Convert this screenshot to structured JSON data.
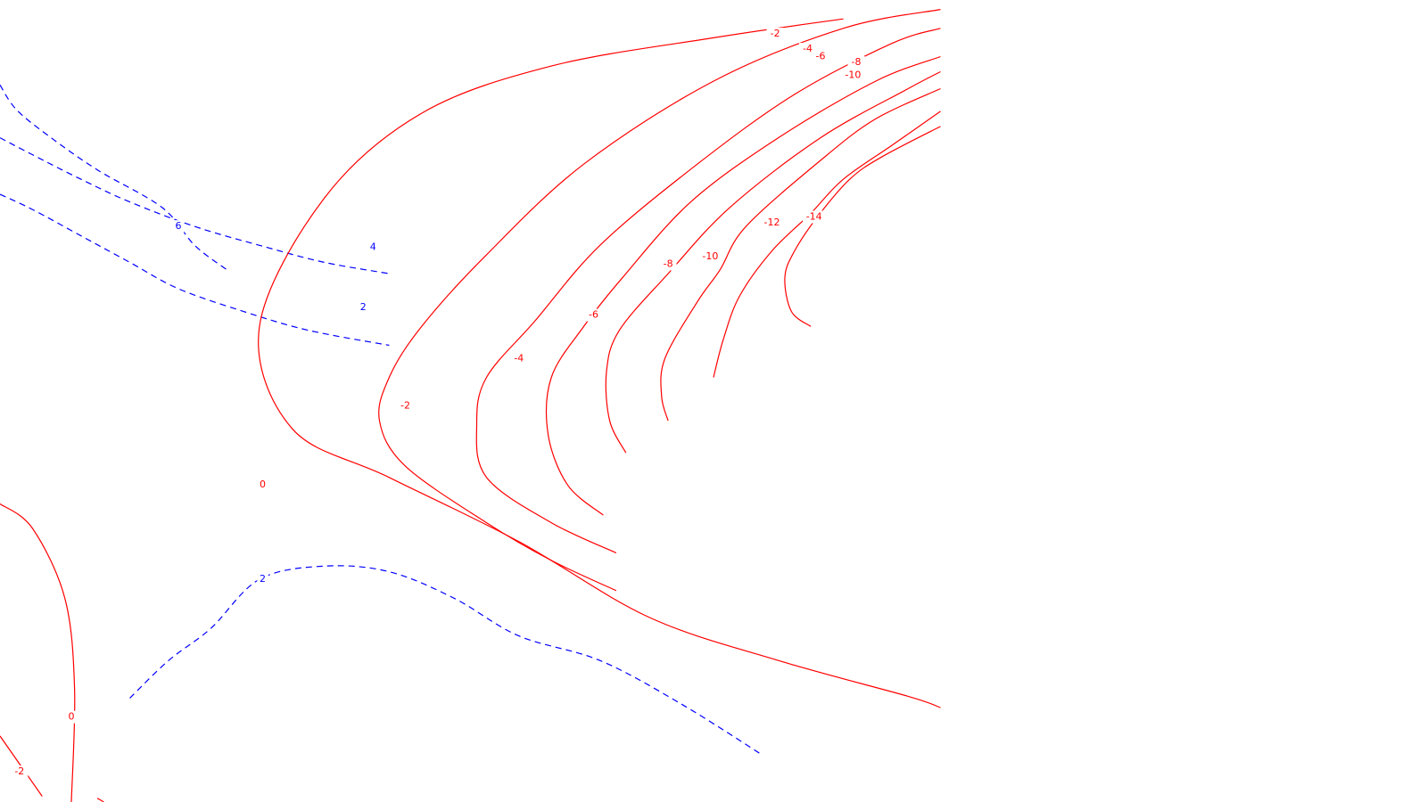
{
  "chart_data": {
    "type": "contour",
    "colors": {
      "positive": "#0000ff",
      "negative": "#ff0000"
    },
    "line_styles": {
      "positive": "dashed",
      "negative": "solid"
    },
    "contours": [
      {
        "id": "p6",
        "level": 6,
        "label": "6",
        "points": [
          [
            0,
            1
          ],
          [
            0.5,
            0.87
          ],
          [
            1.5,
            0.73
          ],
          [
            3,
            0.55
          ],
          [
            5,
            0.35
          ],
          [
            6,
            0.15
          ],
          [
            7,
            0.02
          ]
        ]
      },
      {
        "id": "p4",
        "level": 4,
        "label": "4",
        "points": [
          [
            0,
            0.72
          ],
          [
            1,
            0.63
          ],
          [
            2.5,
            0.5
          ],
          [
            4,
            0.38
          ],
          [
            6,
            0.25
          ],
          [
            8,
            0.15
          ],
          [
            10,
            0.06
          ],
          [
            12,
            0
          ]
        ]
      },
      {
        "id": "p2a",
        "level": 2,
        "label": "2",
        "points": [
          [
            0,
            0.42
          ],
          [
            1,
            0.34
          ],
          [
            2.5,
            0.2
          ],
          [
            4,
            0.06
          ],
          [
            5.5,
            -0.08
          ],
          [
            7.5,
            -0.2
          ],
          [
            9.5,
            -0.3
          ],
          [
            12,
            -0.38
          ]
        ]
      },
      {
        "id": "p2b",
        "level": 2,
        "label": "2",
        "points": [
          [
            4,
            -2.25
          ],
          [
            5.2,
            -2.05
          ],
          [
            6.5,
            -1.88
          ],
          [
            8,
            -1.62
          ],
          [
            10,
            -1.55
          ],
          [
            12,
            -1.58
          ],
          [
            14,
            -1.72
          ],
          [
            16,
            -1.92
          ],
          [
            18.5,
            -2.05
          ],
          [
            21,
            -2.28
          ],
          [
            23.5,
            -2.55
          ]
        ]
      },
      {
        "id": "n0a",
        "level": 0,
        "label": "0",
        "points": [
          [
            0,
            -1.22
          ],
          [
            1,
            -1.35
          ],
          [
            2,
            -1.72
          ],
          [
            2.3,
            -2.2
          ],
          [
            2.2,
            -2.8
          ]
        ]
      },
      {
        "id": "n0b",
        "level": 0,
        "label": "0",
        "points": [
          [
            29,
            -2.3
          ],
          [
            28,
            -2.24
          ],
          [
            24,
            -2.05
          ],
          [
            20,
            -1.82
          ],
          [
            16,
            -1.42
          ],
          [
            12,
            -1.08
          ],
          [
            9,
            -0.82
          ],
          [
            8,
            -0.28
          ],
          [
            10,
            0.4
          ],
          [
            13,
            0.85
          ],
          [
            17,
            1.1
          ],
          [
            22,
            1.25
          ],
          [
            26,
            1.35
          ]
        ]
      },
      {
        "id": "n2b",
        "level": -2,
        "label": "-2",
        "points": [
          [
            19,
            -1.68
          ],
          [
            17,
            -1.52
          ],
          [
            15,
            -1.32
          ],
          [
            12.5,
            -1.02
          ],
          [
            11.7,
            -0.78
          ],
          [
            12,
            -0.55
          ],
          [
            13,
            -0.28
          ],
          [
            15,
            0.1
          ],
          [
            18,
            0.58
          ],
          [
            22,
            1.02
          ],
          [
            26,
            1.3
          ],
          [
            29,
            1.4
          ]
        ]
      },
      {
        "id": "n4",
        "level": -4,
        "label": "-4",
        "points": [
          [
            19,
            -1.48
          ],
          [
            17,
            -1.32
          ],
          [
            15,
            -1.08
          ],
          [
            14.7,
            -0.8
          ],
          [
            15,
            -0.55
          ],
          [
            16.5,
            -0.25
          ],
          [
            18.5,
            0.15
          ],
          [
            21.5,
            0.58
          ],
          [
            24.5,
            0.95
          ],
          [
            27.5,
            1.22
          ],
          [
            29,
            1.3
          ]
        ]
      },
      {
        "id": "n6",
        "level": -6,
        "label": "-6",
        "points": [
          [
            18.6,
            -1.28
          ],
          [
            17.5,
            -1.12
          ],
          [
            16.9,
            -0.85
          ],
          [
            17,
            -0.55
          ],
          [
            18,
            -0.28
          ],
          [
            19.2,
            -0.02
          ],
          [
            21.3,
            0.38
          ],
          [
            24,
            0.72
          ],
          [
            27,
            1.02
          ],
          [
            29,
            1.15
          ]
        ]
      },
      {
        "id": "n8",
        "level": -8,
        "label": "-8",
        "points": [
          [
            19.3,
            -0.95
          ],
          [
            18.8,
            -0.78
          ],
          [
            18.7,
            -0.52
          ],
          [
            19.1,
            -0.3
          ],
          [
            20.6,
            0
          ],
          [
            22.5,
            0.35
          ],
          [
            25.3,
            0.72
          ],
          [
            28,
            0.98
          ],
          [
            29,
            1.07
          ]
        ]
      },
      {
        "id": "n10",
        "level": -10,
        "label": "-10",
        "points": [
          [
            20.6,
            -0.78
          ],
          [
            20.4,
            -0.65
          ],
          [
            20.5,
            -0.45
          ],
          [
            21.5,
            -0.15
          ],
          [
            22.2,
            0.02
          ],
          [
            23,
            0.25
          ],
          [
            25.3,
            0.6
          ],
          [
            27,
            0.82
          ],
          [
            29,
            0.98
          ]
        ]
      },
      {
        "id": "n12",
        "level": -12,
        "label": "-12",
        "points": [
          [
            22,
            -0.55
          ],
          [
            22.3,
            -0.35
          ],
          [
            22.8,
            -0.12
          ],
          [
            23.8,
            0.12
          ],
          [
            25,
            0.32
          ],
          [
            26,
            0.5
          ],
          [
            27.5,
            0.68
          ],
          [
            29,
            0.86
          ]
        ]
      },
      {
        "id": "n14",
        "level": -14,
        "label": "-14",
        "points": [
          [
            25,
            -0.28
          ],
          [
            24.4,
            -0.2
          ],
          [
            24.2,
            -0.02
          ],
          [
            24.5,
            0.12
          ],
          [
            25.2,
            0.3
          ],
          [
            26.2,
            0.5
          ],
          [
            27.2,
            0.62
          ],
          [
            29,
            0.78
          ]
        ]
      },
      {
        "id": "n2a",
        "level": -2,
        "label": "-2",
        "points": [
          [
            0,
            -2.45
          ],
          [
            1.3,
            -2.77
          ]
        ]
      },
      {
        "id": "n2c",
        "level": -2,
        "label": "",
        "points": [
          [
            3,
            -2.78
          ],
          [
            3.2,
            -2.8
          ]
        ]
      }
    ],
    "labels": [
      {
        "id": "l1",
        "text": "6",
        "at": [
          5.5,
          0.25
        ],
        "kind": "pos"
      },
      {
        "id": "l2",
        "text": "4",
        "at": [
          11.5,
          0.14
        ],
        "kind": "pos"
      },
      {
        "id": "l3",
        "text": "2",
        "at": [
          11.2,
          -0.18
        ],
        "kind": "pos"
      },
      {
        "id": "l4",
        "text": "2",
        "at": [
          8.1,
          -1.62
        ],
        "kind": "pos"
      },
      {
        "id": "l5",
        "text": "-2",
        "at": [
          23.9,
          1.27
        ],
        "kind": "neg"
      },
      {
        "id": "l6",
        "text": "-4",
        "at": [
          24.9,
          1.19
        ],
        "kind": "neg"
      },
      {
        "id": "l7",
        "text": "-6",
        "at": [
          25.3,
          1.15
        ],
        "kind": "neg"
      },
      {
        "id": "l8",
        "text": "-8",
        "at": [
          26.4,
          1.12
        ],
        "kind": "neg"
      },
      {
        "id": "l9",
        "text": "-10",
        "at": [
          26.3,
          1.05
        ],
        "kind": "neg"
      },
      {
        "id": "l10",
        "text": "-14",
        "at": [
          25.1,
          0.3
        ],
        "kind": "neg"
      },
      {
        "id": "l11",
        "text": "-12",
        "at": [
          23.8,
          0.27
        ],
        "kind": "neg"
      },
      {
        "id": "l12",
        "text": "-10",
        "at": [
          21.9,
          0.09
        ],
        "kind": "neg"
      },
      {
        "id": "l13",
        "text": "-8",
        "at": [
          20.6,
          0.05
        ],
        "kind": "neg"
      },
      {
        "id": "l14",
        "text": "-6",
        "at": [
          18.3,
          -0.22
        ],
        "kind": "neg"
      },
      {
        "id": "l15",
        "text": "-4",
        "at": [
          16,
          -0.45
        ],
        "kind": "neg"
      },
      {
        "id": "l16",
        "text": "-2",
        "at": [
          12.5,
          -0.7
        ],
        "kind": "neg"
      },
      {
        "id": "l17",
        "text": "0",
        "at": [
          8.1,
          -1.12
        ],
        "kind": "neg"
      },
      {
        "id": "l18",
        "text": "0",
        "at": [
          2.2,
          -2.35
        ],
        "kind": "neg"
      },
      {
        "id": "l19",
        "text": "-2",
        "at": [
          0.6,
          -2.64
        ],
        "kind": "neg"
      }
    ],
    "xlim": [
      0,
      44
    ],
    "ylim": [
      -2.8,
      1.45
    ],
    "grid": false,
    "axes_visible": false,
    "legend": "none"
  }
}
